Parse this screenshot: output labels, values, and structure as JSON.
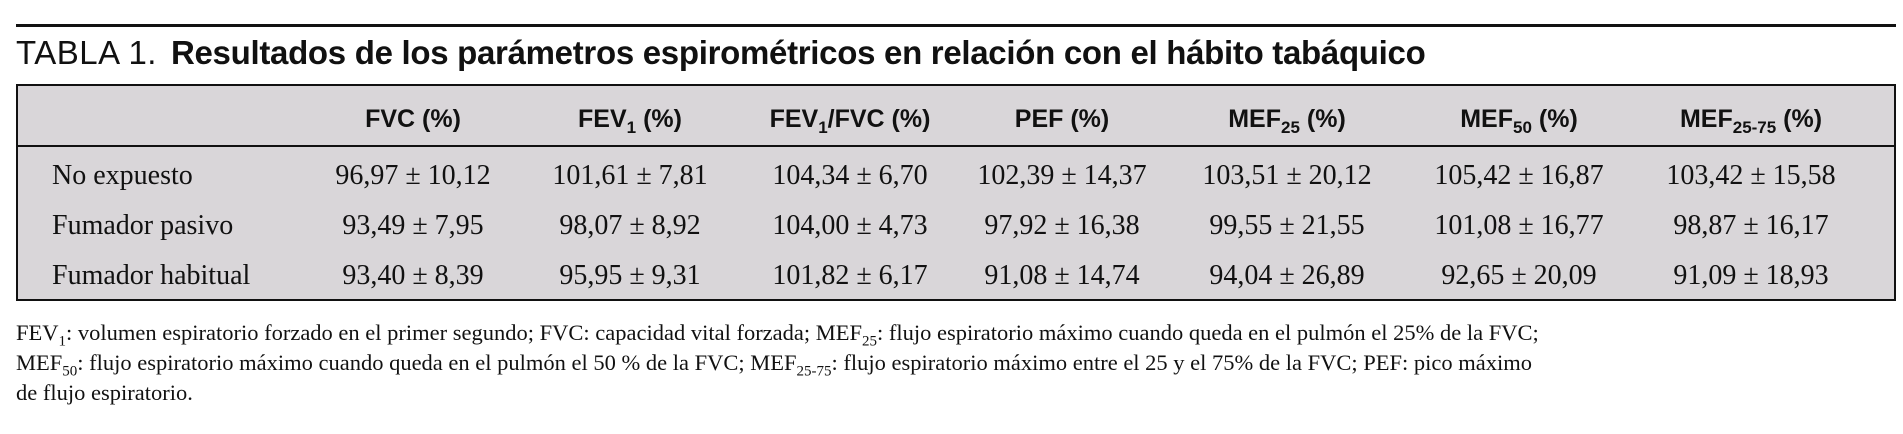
{
  "title": {
    "prefix": "TABLA 1.",
    "text": "Resultados de los parámetros espirométricos en relación con el hábito tabáquico"
  },
  "table": {
    "headers": [
      {
        "base": "FVC",
        "sub": "",
        "suffix": " (%)"
      },
      {
        "base": "FEV",
        "sub": "1",
        "suffix": " (%)"
      },
      {
        "base": "FEV",
        "sub": "1",
        "suffix": "/FVC (%)"
      },
      {
        "base": "PEF",
        "sub": "",
        "suffix": " (%)"
      },
      {
        "base": "MEF",
        "sub": "25",
        "suffix": " (%)"
      },
      {
        "base": "MEF",
        "sub": "50",
        "suffix": " (%)"
      },
      {
        "base": "MEF",
        "sub": "25-75",
        "suffix": " (%)"
      }
    ],
    "rows": [
      {
        "label": "No expuesto",
        "values": [
          "96,97 ± 10,12",
          "101,61 ± 7,81",
          "104,34 ± 6,70",
          "102,39 ± 14,37",
          "103,51 ± 20,12",
          "105,42 ± 16,87",
          "103,42 ± 15,58"
        ]
      },
      {
        "label": "Fumador pasivo",
        "values": [
          "93,49 ± 7,95",
          "98,07 ± 8,92",
          "104,00 ± 4,73",
          "97,92 ± 16,38",
          "99,55 ± 21,55",
          "101,08 ± 16,77",
          "98,87 ± 16,17"
        ]
      },
      {
        "label": "Fumador habitual",
        "values": [
          "93,40 ± 8,39",
          "95,95 ± 9,31",
          "101,82 ± 6,17",
          "91,08 ± 14,74",
          "94,04 ± 26,89",
          "92,65 ± 20,09",
          "91,09 ± 18,93"
        ]
      }
    ]
  },
  "footnote": {
    "line1": {
      "a": "FEV",
      "a_sub": "1",
      "b": ": volumen espiratorio forzado en el primer segundo; FVC: capacidad vital forzada; MEF",
      "b_sub": "25",
      "c": ": flujo espiratorio máximo cuando queda en el pulmón el 25% de la FVC;"
    },
    "line2": {
      "a": "MEF",
      "a_sub": "50",
      "b": ": flujo espiratorio máximo cuando queda en el pulmón el 50 % de la FVC; MEF",
      "b_sub": "25-75",
      "c": ": flujo espiratorio máximo entre el 25 y el 75% de la FVC; PEF: pico máximo"
    },
    "line3": "de flujo espiratorio."
  }
}
